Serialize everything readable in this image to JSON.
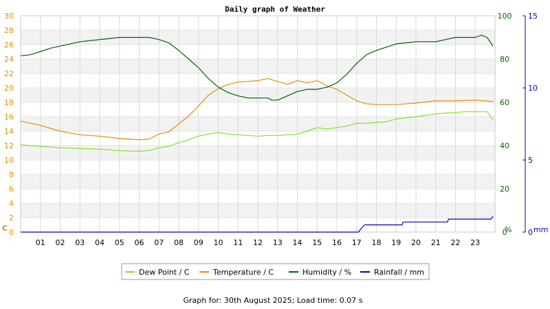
{
  "chart_data": {
    "type": "line",
    "title": "Daily graph of Weather",
    "footer": "Graph for: 30th August 2025; Load time: 0.07 s",
    "axes": {
      "left": {
        "unit_label": "C",
        "ticks": [
          "0",
          "2",
          "4",
          "6",
          "8",
          "10",
          "12",
          "14",
          "16",
          "18",
          "20",
          "22",
          "24",
          "26",
          "28",
          "30"
        ],
        "ylim": [
          0,
          30
        ],
        "color": "#e09000"
      },
      "humidity": {
        "unit_label": "%",
        "ticks": [
          "0",
          "20",
          "40",
          "60",
          "80",
          "100"
        ],
        "ylim": [
          0,
          100
        ],
        "color": "#006000"
      },
      "rainfall": {
        "unit_label": "mm",
        "ticks": [
          "0",
          "5",
          "10",
          "15"
        ],
        "ylim": [
          0,
          15
        ],
        "color": "#0000b0"
      },
      "x": {
        "ticks": [
          "01",
          "02",
          "03",
          "04",
          "05",
          "06",
          "07",
          "08",
          "09",
          "10",
          "11",
          "12",
          "13",
          "14",
          "15",
          "16",
          "17",
          "18",
          "19",
          "20",
          "21",
          "22",
          "23"
        ],
        "xlim": [
          0,
          24
        ],
        "unit": "hour"
      }
    },
    "grid": true,
    "legend_position": "bottom",
    "series": [
      {
        "name": "Dew Point / C",
        "axis": "left",
        "color": "#80e020",
        "points": [
          [
            0,
            12.1
          ],
          [
            1,
            11.9
          ],
          [
            2,
            11.7
          ],
          [
            3,
            11.6
          ],
          [
            4,
            11.5
          ],
          [
            5,
            11.3
          ],
          [
            6,
            11.2
          ],
          [
            6.5,
            11.3
          ],
          [
            7,
            11.7
          ],
          [
            7.5,
            11.9
          ],
          [
            8,
            12.4
          ],
          [
            8.5,
            12.8
          ],
          [
            9,
            13.3
          ],
          [
            9.5,
            13.6
          ],
          [
            10,
            13.8
          ],
          [
            10.5,
            13.6
          ],
          [
            11,
            13.5
          ],
          [
            12,
            13.3
          ],
          [
            12.5,
            13.4
          ],
          [
            13,
            13.4
          ],
          [
            14,
            13.6
          ],
          [
            14.5,
            14.0
          ],
          [
            15,
            14.5
          ],
          [
            15.5,
            14.3
          ],
          [
            16,
            14.5
          ],
          [
            16.5,
            14.7
          ],
          [
            17,
            15.1
          ],
          [
            17.5,
            15.1
          ],
          [
            18,
            15.2
          ],
          [
            18.5,
            15.3
          ],
          [
            19,
            15.7
          ],
          [
            20,
            16.0
          ],
          [
            21,
            16.4
          ],
          [
            22,
            16.6
          ],
          [
            22.5,
            16.7
          ],
          [
            23,
            16.7
          ],
          [
            23.6,
            16.7
          ],
          [
            23.9,
            15.6
          ]
        ]
      },
      {
        "name": "Temperature / C",
        "axis": "left",
        "color": "#e09000",
        "points": [
          [
            0,
            15.4
          ],
          [
            1,
            14.8
          ],
          [
            2,
            14.0
          ],
          [
            3,
            13.5
          ],
          [
            4,
            13.3
          ],
          [
            5,
            13.0
          ],
          [
            6,
            12.8
          ],
          [
            6.5,
            12.9
          ],
          [
            7,
            13.6
          ],
          [
            7.5,
            13.9
          ],
          [
            8,
            15.0
          ],
          [
            8.5,
            16.1
          ],
          [
            9,
            17.5
          ],
          [
            9.5,
            19.0
          ],
          [
            10,
            19.9
          ],
          [
            10.5,
            20.5
          ],
          [
            11,
            20.8
          ],
          [
            12,
            21.0
          ],
          [
            12.5,
            21.3
          ],
          [
            13,
            20.9
          ],
          [
            13.5,
            20.5
          ],
          [
            14,
            21.0
          ],
          [
            14.5,
            20.7
          ],
          [
            15,
            21.0
          ],
          [
            15.5,
            20.3
          ],
          [
            16,
            19.8
          ],
          [
            16.5,
            19.0
          ],
          [
            17,
            18.2
          ],
          [
            17.5,
            17.8
          ],
          [
            18,
            17.7
          ],
          [
            19,
            17.7
          ],
          [
            20,
            17.9
          ],
          [
            21,
            18.2
          ],
          [
            22,
            18.2
          ],
          [
            23,
            18.3
          ],
          [
            23.9,
            18.1
          ]
        ]
      },
      {
        "name": "Humidity / %",
        "axis": "humidity",
        "color": "#006000",
        "points": [
          [
            0,
            81.5
          ],
          [
            0.5,
            82
          ],
          [
            1,
            83.5
          ],
          [
            1.5,
            85
          ],
          [
            2,
            86
          ],
          [
            3,
            88
          ],
          [
            3.5,
            88.5
          ],
          [
            4,
            89
          ],
          [
            4.5,
            89.5
          ],
          [
            5,
            90
          ],
          [
            5.5,
            90
          ],
          [
            6,
            90
          ],
          [
            6.5,
            90
          ],
          [
            7,
            89
          ],
          [
            7.5,
            87.5
          ],
          [
            8,
            84
          ],
          [
            8.5,
            80
          ],
          [
            9,
            76
          ],
          [
            9.5,
            71
          ],
          [
            10,
            67
          ],
          [
            10.5,
            64.5
          ],
          [
            11,
            63
          ],
          [
            11.5,
            62
          ],
          [
            12,
            62
          ],
          [
            12.5,
            62
          ],
          [
            12.7,
            61
          ],
          [
            13,
            61
          ],
          [
            13.5,
            63
          ],
          [
            14,
            65
          ],
          [
            14.5,
            66
          ],
          [
            15,
            66
          ],
          [
            15.5,
            67
          ],
          [
            16,
            69
          ],
          [
            16.5,
            73
          ],
          [
            17,
            78
          ],
          [
            17.5,
            82
          ],
          [
            18,
            84
          ],
          [
            18.5,
            85.5
          ],
          [
            19,
            87
          ],
          [
            19.5,
            87.5
          ],
          [
            20,
            88
          ],
          [
            20.5,
            88
          ],
          [
            21,
            88
          ],
          [
            21.5,
            89
          ],
          [
            22,
            90
          ],
          [
            22.5,
            90
          ],
          [
            23,
            90
          ],
          [
            23.3,
            91
          ],
          [
            23.6,
            90
          ],
          [
            23.9,
            86
          ]
        ]
      },
      {
        "name": "Rainfall / mm",
        "axis": "rainfall",
        "color": "#0000b0",
        "points": [
          [
            0,
            0
          ],
          [
            17.1,
            0
          ],
          [
            17.2,
            0.2
          ],
          [
            17.4,
            0.5
          ],
          [
            19.3,
            0.5
          ],
          [
            19.35,
            0.7
          ],
          [
            21.6,
            0.7
          ],
          [
            21.65,
            0.9
          ],
          [
            23.8,
            0.9
          ],
          [
            23.9,
            1.1
          ]
        ]
      }
    ]
  }
}
